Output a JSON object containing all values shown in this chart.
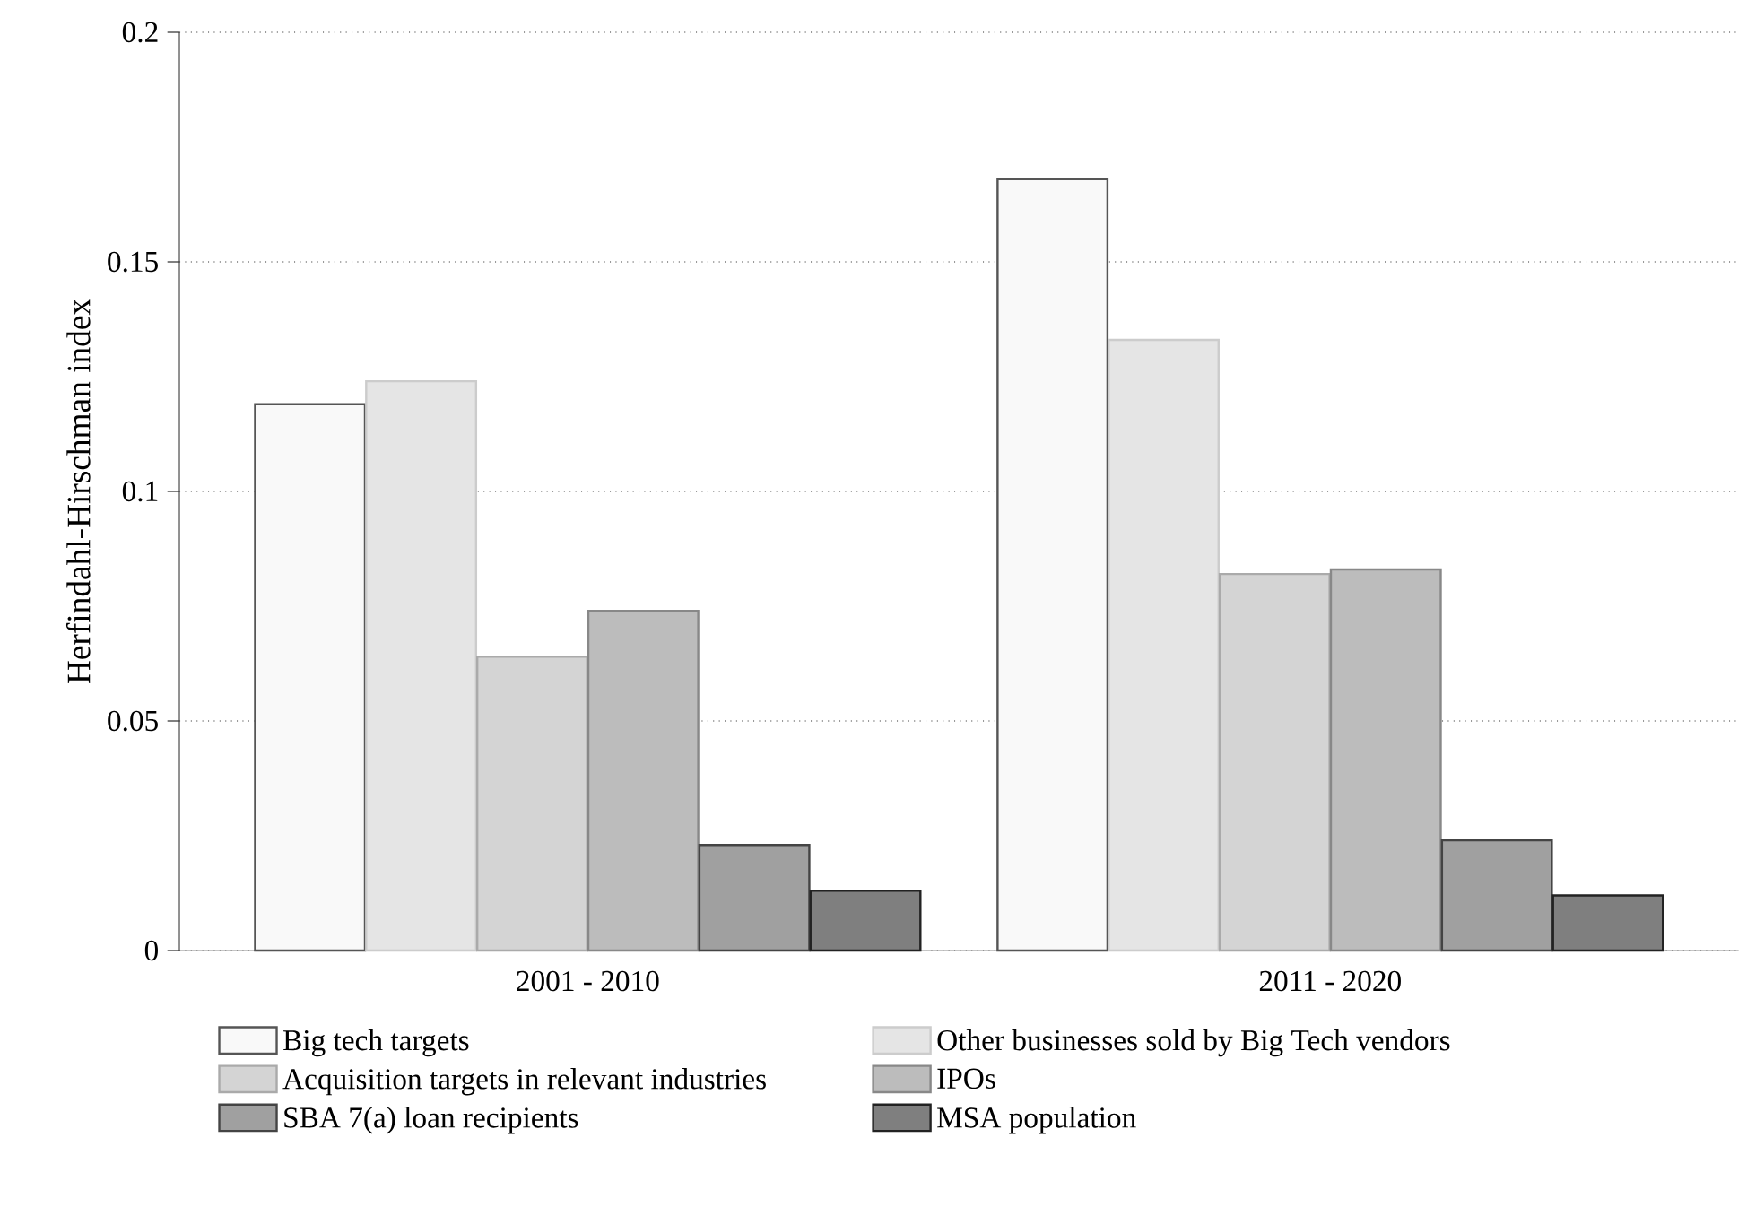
{
  "chart_data": {
    "type": "bar",
    "ylabel": "Herfindahl-Hirschman index",
    "categories": [
      "2001 - 2010",
      "2011 - 2020"
    ],
    "series": [
      {
        "name": "Big tech targets",
        "color": "#f9f9f9",
        "values": [
          0.119,
          0.168
        ]
      },
      {
        "name": "Other businesses sold by Big Tech vendors",
        "color": "#e5e5e5",
        "values": [
          0.124,
          0.133
        ]
      },
      {
        "name": "Acquisition targets in relevant industries",
        "color": "#d4d4d4",
        "values": [
          0.064,
          0.082
        ]
      },
      {
        "name": "IPOs",
        "color": "#bcbcbc",
        "values": [
          0.074,
          0.083
        ]
      },
      {
        "name": "SBA 7(a) loan recipients",
        "color": "#a0a0a0",
        "values": [
          0.023,
          0.024
        ]
      },
      {
        "name": "MSA population",
        "color": "#7f7f7f",
        "values": [
          0.013,
          0.012
        ]
      }
    ],
    "ylim": [
      0,
      0.2
    ],
    "yticks": [
      0,
      {
        "value": 0.05,
        "label": "0.05"
      },
      {
        "value": 0.1,
        "label": "0.1"
      },
      {
        "value": 0.15,
        "label": "0.15"
      },
      {
        "value": 0.2,
        "label": "0.2"
      }
    ],
    "grid": "y",
    "legend": "bottom"
  }
}
